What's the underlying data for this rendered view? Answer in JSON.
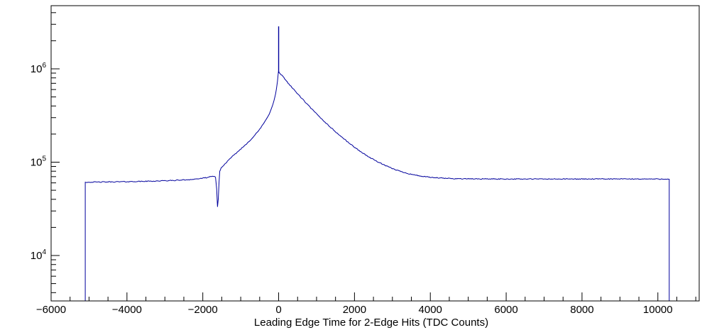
{
  "chart_data": {
    "type": "line",
    "title": "",
    "xlabel": "Leading Edge Time for 2-Edge Hits (TDC Counts)",
    "ylabel": "",
    "grid": false,
    "legend": false,
    "y_scale": "log",
    "xlim": [
      -6000,
      11090
    ],
    "ylim": [
      3260,
      4750000
    ],
    "x_ticks": [
      -6000,
      -4000,
      -2000,
      0,
      2000,
      4000,
      6000,
      8000,
      10000
    ],
    "x_tick_labels": [
      "−6000",
      "−4000",
      "−2000",
      "0",
      "2000",
      "4000",
      "6000",
      "8000",
      "10000"
    ],
    "x_minor_step": 500,
    "y_major_ticks": [
      10000,
      100000,
      1000000
    ],
    "y_tick_labels": [
      {
        "base": "10",
        "exp": "4"
      },
      {
        "base": "10",
        "exp": "5"
      },
      {
        "base": "10",
        "exp": "6"
      }
    ],
    "line_color": "#00009c",
    "frame_color": "#000000",
    "background_color": "#ffffff",
    "spike": {
      "x": 0,
      "y": 2850000
    },
    "series": [
      {
        "name": "leading-edge-time-2edge-hits",
        "left_edge": -5100,
        "right_edge": 10300,
        "breakpoints": [
          [
            -5100,
            61000
          ],
          [
            -4600,
            61300
          ],
          [
            -4000,
            61800
          ],
          [
            -3400,
            62500
          ],
          [
            -2800,
            63600
          ],
          [
            -2300,
            65200
          ],
          [
            -2000,
            67200
          ],
          [
            -1820,
            69300
          ],
          [
            -1720,
            70600
          ],
          [
            -1665,
            69500
          ],
          [
            -1635,
            52000
          ],
          [
            -1612,
            33000
          ],
          [
            -1592,
            40000
          ],
          [
            -1572,
            62000
          ],
          [
            -1552,
            80000
          ],
          [
            -1520,
            86000
          ],
          [
            -1450,
            92500
          ],
          [
            -1350,
            102000
          ],
          [
            -1250,
            112000
          ],
          [
            -1150,
            122000
          ],
          [
            -1050,
            132500
          ],
          [
            -950,
            144000
          ],
          [
            -850,
            157000
          ],
          [
            -750,
            172000
          ],
          [
            -650,
            190000
          ],
          [
            -550,
            212000
          ],
          [
            -450,
            240000
          ],
          [
            -350,
            277000
          ],
          [
            -250,
            328000
          ],
          [
            -150,
            415000
          ],
          [
            -100,
            495000
          ],
          [
            -60,
            600000
          ],
          [
            -30,
            740000
          ],
          [
            -12,
            880000
          ],
          [
            0,
            950000
          ],
          [
            15,
            905000
          ],
          [
            60,
            870000
          ],
          [
            120,
            820000
          ],
          [
            200,
            745000
          ],
          [
            300,
            668000
          ],
          [
            400,
            600000
          ],
          [
            500,
            541000
          ],
          [
            600,
            488000
          ],
          [
            700,
            441000
          ],
          [
            800,
            399000
          ],
          [
            900,
            362000
          ],
          [
            1000,
            329000
          ],
          [
            1100,
            300000
          ],
          [
            1200,
            274000
          ],
          [
            1300,
            251000
          ],
          [
            1400,
            230000
          ],
          [
            1500,
            212000
          ],
          [
            1600,
            195000
          ],
          [
            1700,
            181000
          ],
          [
            1800,
            167500
          ],
          [
            1900,
            155500
          ],
          [
            2000,
            144500
          ],
          [
            2200,
            126500
          ],
          [
            2400,
            112500
          ],
          [
            2600,
            101500
          ],
          [
            2800,
            92500
          ],
          [
            3000,
            85500
          ],
          [
            3200,
            80000
          ],
          [
            3400,
            75800
          ],
          [
            3600,
            72700
          ],
          [
            3800,
            70400
          ],
          [
            4000,
            68700
          ],
          [
            4300,
            67400
          ],
          [
            4600,
            66700
          ],
          [
            5000,
            66300
          ],
          [
            6000,
            66000
          ],
          [
            7500,
            66000
          ],
          [
            9000,
            66100
          ],
          [
            10300,
            66000
          ]
        ]
      }
    ]
  }
}
